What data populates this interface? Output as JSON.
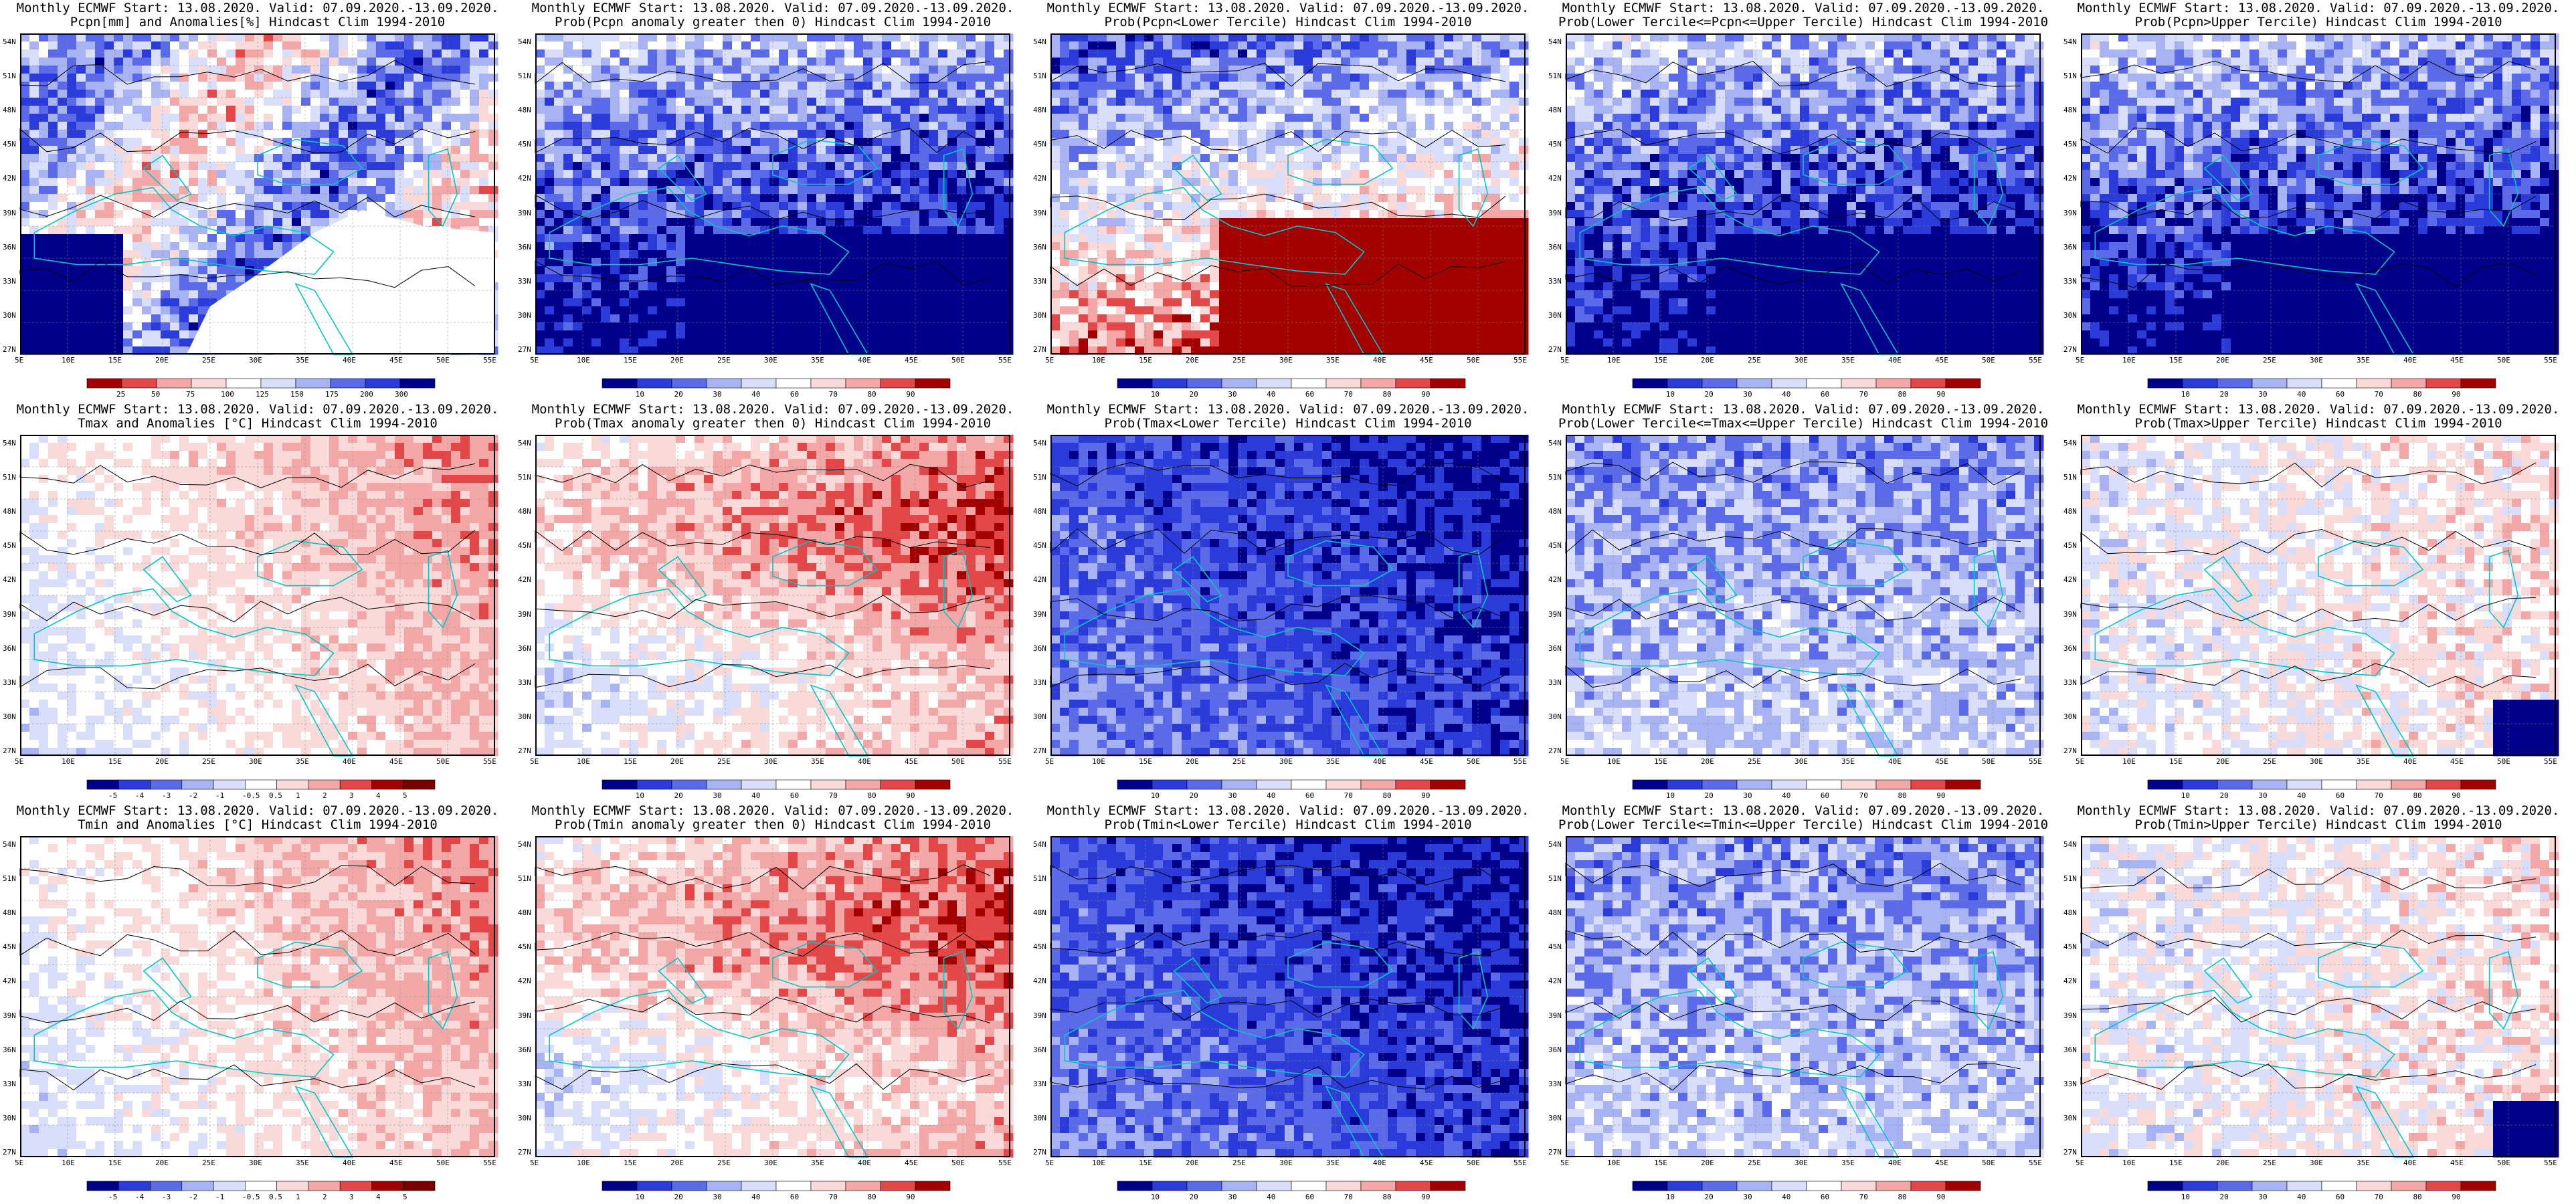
{
  "colors": {
    "deep_blue": "#00008b",
    "blue": "#2b3bd9",
    "mid_blue": "#5a6ae8",
    "light_blue": "#a7b3f3",
    "pale_blue": "#d9defa",
    "white": "#ffffff",
    "pale_red": "#fad9d9",
    "light_red": "#f4a7a7",
    "red": "#e34747",
    "dark_red": "#a30000",
    "coast": "#00c8c8",
    "contour": "#000000"
  },
  "lat_labels": [
    "54N",
    "51N",
    "48N",
    "45N",
    "42N",
    "39N",
    "36N",
    "33N",
    "30N",
    "27N"
  ],
  "lon_labels": [
    "5E",
    "10E",
    "15E",
    "20E",
    "25E",
    "30E",
    "35E",
    "40E",
    "45E",
    "50E",
    "55E"
  ],
  "panels": [
    {
      "title1": "Monthly ECMWF Start: 13.08.2020. Valid: 07.09.2020.-13.09.2020.",
      "title2": "Pcpn[mm] and Anomalies[%]",
      "title2b": " Hindcast Clim 1994-2010",
      "palette": "anom",
      "ticks": [
        "25",
        "50",
        "75",
        "100",
        "125",
        "150",
        "175",
        "200",
        "300"
      ],
      "mode": "pcpn_anom"
    },
    {
      "title1": "Monthly ECMWF Start: 13.08.2020. Valid: 07.09.2020.-13.09.2020.",
      "title2": "Prob(Pcpn anomaly greater then 0)",
      "title2b": " Hindcast Clim 1994-2010",
      "palette": "prob",
      "ticks": [
        "10",
        "20",
        "30",
        "40",
        "60",
        "70",
        "80",
        "90"
      ],
      "mode": "blue_south"
    },
    {
      "title1": "Monthly ECMWF Start: 13.08.2020. Valid: 07.09.2020.-13.09.2020.",
      "title2": "Prob(Pcpn<Lower Tercile)",
      "title2b": " Hindcast Clim 1994-2010",
      "palette": "prob",
      "ticks": [
        "10",
        "20",
        "30",
        "40",
        "60",
        "70",
        "80",
        "90"
      ],
      "mode": "red_south"
    },
    {
      "title1": "Monthly ECMWF Start: 13.08.2020. Valid: 07.09.2020.-13.09.2020.",
      "title2": "Prob(Lower Tercile<=Pcpn<=Upper Tercile)",
      "title2b": " Hindcast Clim 1994-2010",
      "palette": "prob",
      "ticks": [
        "10",
        "20",
        "30",
        "40",
        "60",
        "70",
        "80",
        "90"
      ],
      "mode": "blue_south"
    },
    {
      "title1": "Monthly ECMWF Start: 13.08.2020. Valid: 07.09.2020.-13.09.2020.",
      "title2": "Prob(Pcpn>Upper Tercile)",
      "title2b": " Hindcast Clim 1994-2010",
      "palette": "prob",
      "ticks": [
        "10",
        "20",
        "30",
        "40",
        "60",
        "70",
        "80",
        "90"
      ],
      "mode": "blue_south"
    },
    {
      "title1": "Monthly ECMWF Start: 13.08.2020. Valid: 07.09.2020.-13.09.2020.",
      "title2": "Tmax and Anomalies [°C]",
      "title2b": " Hindcast Clim 1994-2010",
      "palette": "temp",
      "ticks": [
        "-5",
        "-4",
        "-3",
        "-2",
        "-1",
        "-0.5",
        "0.5",
        "1",
        "2",
        "3",
        "4",
        "5"
      ],
      "mode": "warm_east"
    },
    {
      "title1": "Monthly ECMWF Start: 13.08.2020. Valid: 07.09.2020.-13.09.2020.",
      "title2": "Prob(Tmax anomaly greater then 0)",
      "title2b": " Hindcast Clim 1994-2010",
      "palette": "prob",
      "ticks": [
        "10",
        "20",
        "30",
        "40",
        "60",
        "70",
        "80",
        "90"
      ],
      "mode": "warm"
    },
    {
      "title1": "Monthly ECMWF Start: 13.08.2020. Valid: 07.09.2020.-13.09.2020.",
      "title2": "Prob(Tmax<Lower Tercile)",
      "title2b": " Hindcast Clim 1994-2010",
      "palette": "prob",
      "ticks": [
        "10",
        "20",
        "30",
        "40",
        "60",
        "70",
        "80",
        "90"
      ],
      "mode": "blue_deep"
    },
    {
      "title1": "Monthly ECMWF Start: 13.08.2020. Valid: 07.09.2020.-13.09.2020.",
      "title2": "Prob(Lower Tercile<=Tmax<=Upper Tercile)",
      "title2b": " Hindcast Clim 1994-2010",
      "palette": "prob",
      "ticks": [
        "10",
        "20",
        "30",
        "40",
        "60",
        "70",
        "80",
        "90"
      ],
      "mode": "blue_mix"
    },
    {
      "title1": "Monthly ECMWF Start: 13.08.2020. Valid: 07.09.2020.-13.09.2020.",
      "title2": "Prob(Tmax>Upper Tercile)",
      "title2b": " Hindcast Clim 1994-2010",
      "palette": "prob",
      "ticks": [
        "10",
        "20",
        "30",
        "40",
        "60",
        "70",
        "80",
        "90"
      ],
      "mode": "mixed_pink"
    },
    {
      "title1": "Monthly ECMWF Start: 13.08.2020. Valid: 07.09.2020.-13.09.2020.",
      "title2": "Tmin and Anomalies [°C]",
      "title2b": " Hindcast Clim 1994-2010",
      "palette": "temp",
      "ticks": [
        "-5",
        "-4",
        "-3",
        "-2",
        "-1",
        "-0.5",
        "0.5",
        "1",
        "2",
        "3",
        "4",
        "5"
      ],
      "mode": "warm_east"
    },
    {
      "title1": "Monthly ECMWF Start: 13.08.2020. Valid: 07.09.2020.-13.09.2020.",
      "title2": "Prob(Tmin anomaly greater then 0)",
      "title2b": " Hindcast Clim 1994-2010",
      "palette": "prob",
      "ticks": [
        "10",
        "20",
        "30",
        "40",
        "60",
        "70",
        "80",
        "90"
      ],
      "mode": "warm"
    },
    {
      "title1": "Monthly ECMWF Start: 13.08.2020. Valid: 07.09.2020.-13.09.2020.",
      "title2": "Prob(Tmin<Lower Tercile)",
      "title2b": " Hindcast Clim 1994-2010",
      "palette": "prob",
      "ticks": [
        "10",
        "20",
        "30",
        "40",
        "60",
        "70",
        "80",
        "90"
      ],
      "mode": "blue_deep"
    },
    {
      "title1": "Monthly ECMWF Start: 13.08.2020. Valid: 07.09.2020.-13.09.2020.",
      "title2": "Prob(Lower Tercile<=Tmin<=Upper Tercile)",
      "title2b": " Hindcast Clim 1994-2010",
      "palette": "prob",
      "ticks": [
        "10",
        "20",
        "30",
        "40",
        "60",
        "70",
        "80",
        "90"
      ],
      "mode": "blue_mix"
    },
    {
      "title1": "Monthly ECMWF Start: 13.08.2020. Valid: 07.09.2020.-13.09.2020.",
      "title2": "Prob(Tmin>Upper Tercile)",
      "title2b": " Hindcast Clim 1994-2010",
      "palette": "prob",
      "ticks": [
        "10",
        "20",
        "30",
        "40",
        "60",
        "70",
        "80",
        "90"
      ],
      "mode": "mixed_pink"
    }
  ]
}
